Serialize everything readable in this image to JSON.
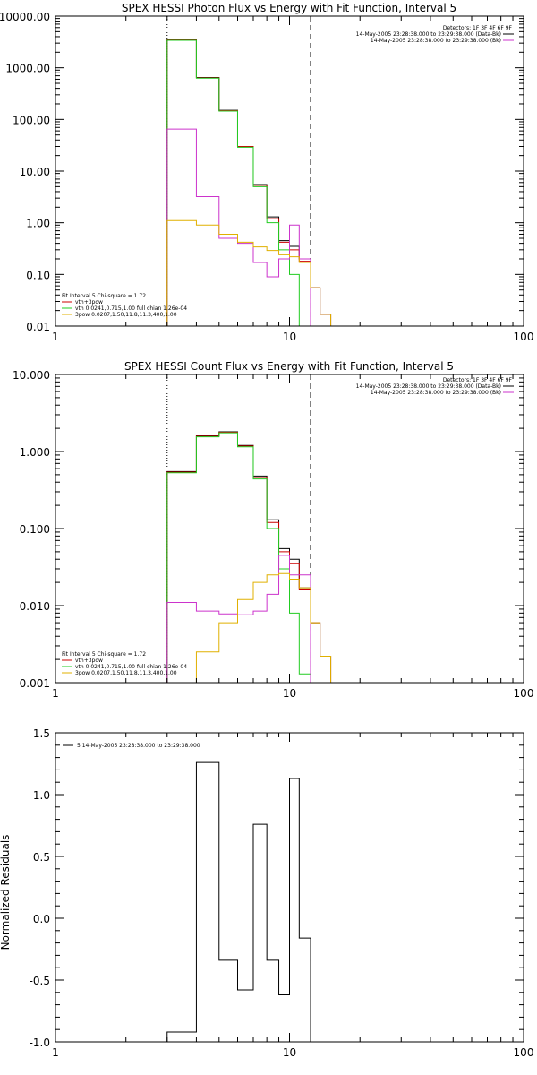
{
  "chart_data": [
    {
      "type": "line",
      "title": "SPEX HESSI Photon Flux vs Energy with Fit Function, Interval 5",
      "xlabel": "",
      "ylabel": "",
      "xscale": "log",
      "yscale": "log",
      "xlim": [
        1,
        100
      ],
      "ylim": [
        0.01,
        10000
      ],
      "x_ticks": [
        1,
        10,
        100
      ],
      "y_ticks": [
        0.01,
        0.1,
        1,
        10,
        100,
        1000,
        10000
      ],
      "y_tick_labels": [
        "0.01",
        "0.10",
        "1.00",
        "10.00",
        "100.00",
        "1000.00",
        "10000.00"
      ],
      "vlines": [
        {
          "x": 3.0,
          "style": "dotted"
        },
        {
          "x": 12.3,
          "style": "dashed"
        }
      ],
      "legend_top": {
        "placement": "top-right",
        "header": "Detectors: 1F 3F 4F 6F 9F",
        "entries": [
          {
            "label": "14-May-2005 23:28:38.000 to 23:29:38.000 (Data-Bk)",
            "color": "#000000"
          },
          {
            "label": "14-May-2005 23:28:38.000 to 23:29:38.000 (Bk)",
            "color": "#cc33cc"
          }
        ]
      },
      "legend_bottom": {
        "placement": "bottom-left",
        "header": "Fit Interval 5   Chi-square = 1.72",
        "entries": [
          {
            "label": "vth+3pow",
            "color": "#cc0000"
          },
          {
            "label": "vth 0.0241,0.715,1.00  full chian 1.26e-04",
            "color": "#22cc22"
          },
          {
            "label": "3pow 0.0207,1.50,11.8,11.3,400,1.00",
            "color": "#e0b000"
          }
        ]
      },
      "series": [
        {
          "color": "#000000",
          "edges": [
            3.0,
            4.0,
            5.0,
            6.0,
            7.0,
            8.0,
            9.0,
            10.0,
            11.0,
            12.3,
            13.5,
            15.0
          ],
          "values": [
            3500,
            650,
            150,
            30,
            5.5,
            1.3,
            0.45,
            0.35,
            0.2,
            0.055,
            0.017
          ]
        },
        {
          "color": "#cc0000",
          "edges": [
            3.0,
            4.0,
            5.0,
            6.0,
            7.0,
            8.0,
            9.0,
            10.0,
            11.0,
            12.3,
            13.5,
            15.0
          ],
          "values": [
            3450,
            640,
            148,
            30,
            5.3,
            1.2,
            0.42,
            0.3,
            0.18,
            0.055,
            0.017
          ]
        },
        {
          "color": "#22cc22",
          "edges": [
            3.0,
            4.0,
            5.0,
            6.0,
            7.0,
            8.0,
            9.0,
            10.0,
            11.0,
            12.3
          ],
          "values": [
            3400,
            630,
            145,
            29,
            5.0,
            1.0,
            0.3,
            0.1,
            0.005
          ]
        },
        {
          "color": "#cc33cc",
          "edges": [
            3.0,
            4.0,
            5.0,
            6.0,
            7.0,
            8.0,
            9.0,
            10.0,
            11.0,
            12.3
          ],
          "values": [
            65,
            3.2,
            0.5,
            0.4,
            0.17,
            0.09,
            0.2,
            0.9,
            0.2
          ]
        },
        {
          "color": "#e0b000",
          "edges": [
            3.0,
            4.0,
            5.0,
            6.0,
            7.0,
            8.0,
            9.0,
            10.0,
            11.0,
            12.3,
            13.5,
            15.0
          ],
          "values": [
            1.1,
            0.9,
            0.6,
            0.42,
            0.34,
            0.29,
            0.24,
            0.22,
            0.17,
            0.055,
            0.017
          ]
        }
      ]
    },
    {
      "type": "line",
      "title": "SPEX HESSI Count Flux vs Energy with Fit Function, Interval 5",
      "xlabel": "",
      "ylabel": "",
      "xscale": "log",
      "yscale": "log",
      "xlim": [
        1,
        100
      ],
      "ylim": [
        0.001,
        10
      ],
      "x_ticks": [
        1,
        10,
        100
      ],
      "y_ticks": [
        0.001,
        0.01,
        0.1,
        1,
        10
      ],
      "y_tick_labels": [
        "0.001",
        "0.010",
        "0.100",
        "1.000",
        "10.000"
      ],
      "vlines": [
        {
          "x": 3.0,
          "style": "dotted"
        },
        {
          "x": 12.3,
          "style": "dashed"
        }
      ],
      "legend_top": {
        "placement": "top-right",
        "header": "Detectors: 1F 3F 4F 6F 9F",
        "entries": [
          {
            "label": "14-May-2005 23:28:38.000 to 23:29:38.000 (Data-Bk)",
            "color": "#000000"
          },
          {
            "label": "14-May-2005 23:28:38.000 to 23:29:38.000 (Bk)",
            "color": "#cc33cc"
          }
        ]
      },
      "legend_bottom": {
        "placement": "bottom-left",
        "header": "Fit Interval 5   Chi-square = 1.72",
        "entries": [
          {
            "label": "vth+3pow",
            "color": "#cc0000"
          },
          {
            "label": "vth 0.0241,0.715,1.00  full chian 1.26e-04",
            "color": "#22cc22"
          },
          {
            "label": "3pow 0.0207,1.50,11.8,11.3,400,1.00",
            "color": "#e0b000"
          }
        ]
      },
      "series": [
        {
          "color": "#000000",
          "edges": [
            3.0,
            4.0,
            5.0,
            6.0,
            7.0,
            8.0,
            9.0,
            10.0,
            11.0,
            12.3,
            13.5,
            15.0
          ],
          "values": [
            0.55,
            1.6,
            1.8,
            1.2,
            0.48,
            0.13,
            0.055,
            0.04,
            0.017,
            0.006,
            0.0022
          ]
        },
        {
          "color": "#cc0000",
          "edges": [
            3.0,
            4.0,
            5.0,
            6.0,
            7.0,
            8.0,
            9.0,
            10.0,
            11.0,
            12.3,
            13.5,
            15.0
          ],
          "values": [
            0.54,
            1.58,
            1.78,
            1.18,
            0.46,
            0.12,
            0.05,
            0.035,
            0.016,
            0.006,
            0.0022
          ]
        },
        {
          "color": "#22cc22",
          "edges": [
            3.0,
            4.0,
            5.0,
            6.0,
            7.0,
            8.0,
            9.0,
            10.0,
            11.0,
            12.3
          ],
          "values": [
            0.53,
            1.55,
            1.75,
            1.15,
            0.44,
            0.1,
            0.03,
            0.008,
            0.0013
          ]
        },
        {
          "color": "#cc33cc",
          "edges": [
            3.0,
            4.0,
            5.0,
            6.0,
            7.0,
            8.0,
            9.0,
            10.0,
            11.0,
            12.3
          ],
          "values": [
            0.011,
            0.0085,
            0.0078,
            0.0076,
            0.0085,
            0.014,
            0.045,
            0.025,
            0.025
          ]
        },
        {
          "color": "#e0b000",
          "edges": [
            3.0,
            4.0,
            5.0,
            6.0,
            7.0,
            8.0,
            9.0,
            10.0,
            11.0,
            12.3,
            13.5,
            15.0
          ],
          "values": [
            0.001,
            0.0025,
            0.006,
            0.012,
            0.02,
            0.025,
            0.026,
            0.022,
            0.017,
            0.006,
            0.0022
          ]
        }
      ]
    },
    {
      "type": "line",
      "title": "",
      "xlabel": "",
      "ylabel": "Normalized Residuals",
      "xscale": "log",
      "yscale": "linear",
      "xlim": [
        1,
        100
      ],
      "ylim": [
        -1.0,
        1.5
      ],
      "x_ticks": [
        1,
        10,
        100
      ],
      "y_ticks": [
        -1.0,
        -0.5,
        0.0,
        0.5,
        1.0,
        1.5
      ],
      "y_tick_labels": [
        "-1.0",
        "-0.5",
        "0.0",
        "0.5",
        "1.0",
        "1.5"
      ],
      "legend_top_left": {
        "placement": "top-left",
        "entries": [
          {
            "label": "5  14-May-2005 23:28:38.000 to 23:29:38.000",
            "color": "#000000"
          }
        ]
      },
      "series": [
        {
          "color": "#000000",
          "edges": [
            3.0,
            4.0,
            5.0,
            6.0,
            7.0,
            8.0,
            9.0,
            10.0,
            11.0,
            12.3
          ],
          "values": [
            -0.92,
            1.26,
            -0.34,
            -0.58,
            0.76,
            -0.34,
            -0.62,
            1.13,
            -0.16
          ]
        }
      ]
    }
  ]
}
